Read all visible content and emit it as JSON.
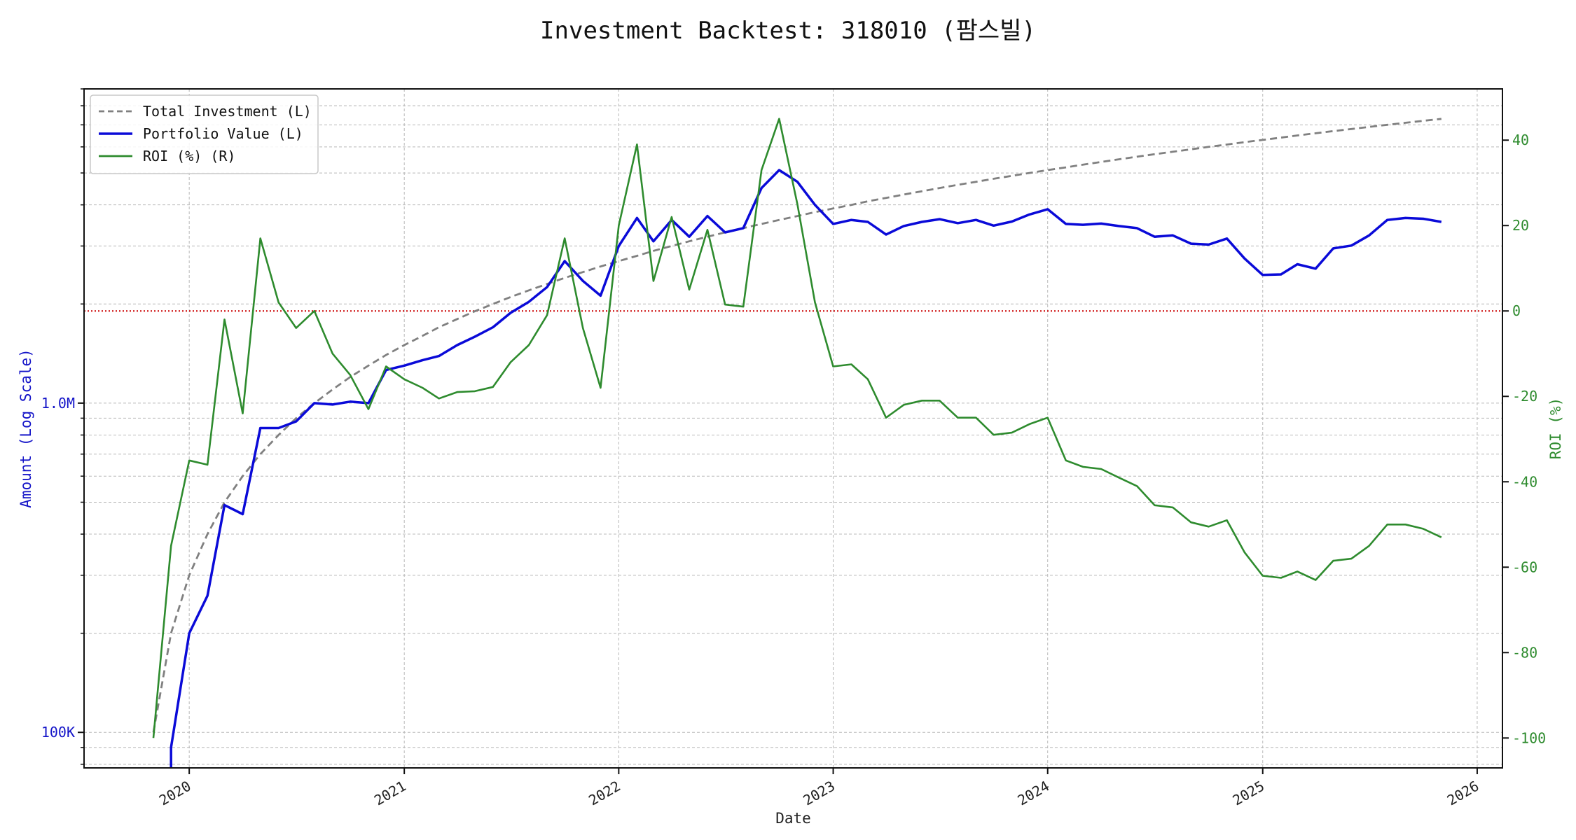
{
  "title": "Investment Backtest: 318010 (팜스빌)",
  "chart_data": {
    "type": "line",
    "title": "Investment Backtest: 318010 (팜스빌)",
    "xlabel": "Date",
    "ylabel_left": "Amount (Log Scale)",
    "ylabel_right": "ROI (%)",
    "left_axis": {
      "scale": "log",
      "ylim": [
        78000,
        9000000
      ],
      "tick_values": [
        100000,
        1000000
      ],
      "tick_labels": [
        "100K",
        "1.0M"
      ]
    },
    "right_axis": {
      "scale": "linear",
      "ylim": [
        -107,
        52
      ],
      "ticks": [
        40,
        20,
        0,
        -20,
        -40,
        -60,
        -80,
        -100
      ]
    },
    "x_axis": {
      "xlim": [
        "2019-07-06",
        "2026-02-13"
      ],
      "ticks": [
        "2020",
        "2021",
        "2022",
        "2023",
        "2024",
        "2025",
        "2026"
      ],
      "tick_dates": [
        "2020-01-01",
        "2021-01-01",
        "2022-01-01",
        "2023-01-01",
        "2024-01-01",
        "2025-01-01",
        "2026-01-01"
      ]
    },
    "grid": true,
    "legend_position": "top-left",
    "reference_line": {
      "axis": "right",
      "value": 0,
      "color": "#cc0000",
      "style": "dotted"
    },
    "x": [
      "2019-11",
      "2019-12",
      "2020-01",
      "2020-02",
      "2020-03",
      "2020-04",
      "2020-05",
      "2020-06",
      "2020-07",
      "2020-08",
      "2020-09",
      "2020-10",
      "2020-11",
      "2020-12",
      "2021-01",
      "2021-02",
      "2021-03",
      "2021-04",
      "2021-05",
      "2021-06",
      "2021-07",
      "2021-08",
      "2021-09",
      "2021-10",
      "2021-11",
      "2021-12",
      "2022-01",
      "2022-02",
      "2022-03",
      "2022-04",
      "2022-05",
      "2022-06",
      "2022-07",
      "2022-08",
      "2022-09",
      "2022-10",
      "2022-11",
      "2022-12",
      "2023-01",
      "2023-02",
      "2023-03",
      "2023-04",
      "2023-05",
      "2023-06",
      "2023-07",
      "2023-08",
      "2023-09",
      "2023-10",
      "2023-11",
      "2023-12",
      "2024-01",
      "2024-02",
      "2024-03",
      "2024-04",
      "2024-05",
      "2024-06",
      "2024-07",
      "2024-08",
      "2024-09",
      "2024-10",
      "2024-11",
      "2024-12",
      "2025-01",
      "2025-02",
      "2025-03",
      "2025-04",
      "2025-05",
      "2025-06",
      "2025-07",
      "2025-08",
      "2025-09",
      "2025-10",
      "2025-11"
    ],
    "series": [
      {
        "name": "Total Investment (L)",
        "axis": "left",
        "color": "#808080",
        "style": "dashed",
        "values": [
          100000,
          200000,
          300000,
          400000,
          500000,
          600000,
          700000,
          800000,
          900000,
          1000000,
          1100000,
          1200000,
          1300000,
          1400000,
          1500000,
          1600000,
          1700000,
          1800000,
          1900000,
          2000000,
          2100000,
          2200000,
          2300000,
          2400000,
          2500000,
          2600000,
          2700000,
          2800000,
          2900000,
          3000000,
          3100000,
          3200000,
          3300000,
          3400000,
          3500000,
          3600000,
          3700000,
          3800000,
          3900000,
          4000000,
          4100000,
          4200000,
          4300000,
          4400000,
          4500000,
          4600000,
          4700000,
          4800000,
          4900000,
          5000000,
          5100000,
          5200000,
          5300000,
          5400000,
          5500000,
          5600000,
          5700000,
          5800000,
          5900000,
          6000000,
          6100000,
          6200000,
          6300000,
          6400000,
          6500000,
          6600000,
          6700000,
          6800000,
          6900000,
          7000000,
          7100000,
          7200000,
          7300000
        ]
      },
      {
        "name": "Portfolio Value (L)",
        "axis": "left",
        "color": "#0a0ad8",
        "style": "solid",
        "values": [
          null,
          90000,
          200000,
          260000,
          490000,
          460000,
          840000,
          840000,
          880000,
          1000000,
          990000,
          1010000,
          1000000,
          1260000,
          1300000,
          1350000,
          1390000,
          1500000,
          1590000,
          1700000,
          1880000,
          2030000,
          2250000,
          2700000,
          2350000,
          2120000,
          3000000,
          3650000,
          3100000,
          3600000,
          3200000,
          3700000,
          3300000,
          3400000,
          4500000,
          5100000,
          4700000,
          4000000,
          3500000,
          3600000,
          3550000,
          3250000,
          3450000,
          3550000,
          3620000,
          3520000,
          3600000,
          3460000,
          3560000,
          3740000,
          3880000,
          3500000,
          3480000,
          3510000,
          3450000,
          3400000,
          3200000,
          3230000,
          3050000,
          3030000,
          3160000,
          2750000,
          2450000,
          2460000,
          2640000,
          2560000,
          2950000,
          3010000,
          3230000,
          3600000,
          3650000,
          3630000,
          3550000
        ]
      },
      {
        "name": "ROI (%) (R)",
        "axis": "right",
        "color": "#2e8b2e",
        "style": "solid",
        "values": [
          -100,
          -55,
          -35,
          -36,
          -2,
          -24,
          17,
          2,
          -4,
          0,
          -10,
          -15,
          -23,
          -13,
          -16,
          -18,
          -20.5,
          -19,
          -18.8,
          -17.8,
          -12,
          -8,
          -1,
          17,
          -4,
          -18,
          20,
          39,
          7,
          22,
          5,
          19,
          1.5,
          1,
          33,
          45,
          25,
          2,
          -13,
          -12.5,
          -16,
          -25,
          -22,
          -21,
          -21,
          -25,
          -25,
          -29,
          -28.5,
          -26.5,
          -25,
          -35,
          -36.5,
          -37,
          -39,
          -41,
          -45.5,
          -46,
          -49.5,
          -50.5,
          -49,
          -56.5,
          -62,
          -62.5,
          -61,
          -63,
          -58.5,
          -58,
          -55,
          -50,
          -50,
          -51,
          -53
        ]
      }
    ],
    "legend": [
      "Total Investment (L)",
      "Portfolio Value (L)",
      "ROI (%) (R)"
    ]
  }
}
